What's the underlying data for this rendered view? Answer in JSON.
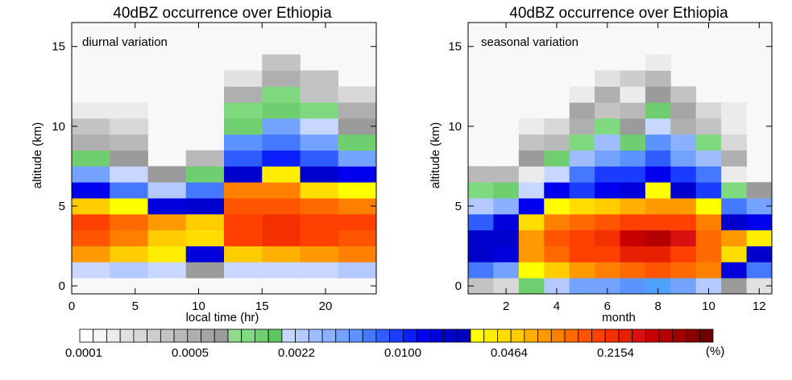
{
  "colorbar": {
    "colors": [
      "#ffffff",
      "#f5f5f5",
      "#ebebeb",
      "#e1e1e1",
      "#d7d7d7",
      "#cdcdcd",
      "#c3c3c3",
      "#b9b9b9",
      "#afafaf",
      "#a5a5a5",
      "#9b9b9b",
      "#91d98f",
      "#7fd97f",
      "#6fcf6f",
      "#5fc55f",
      "#c8d7ff",
      "#b3c9ff",
      "#9fbcff",
      "#8bb0ff",
      "#74a3ff",
      "#5b93ff",
      "#4479ff",
      "#2f5dff",
      "#1a3cff",
      "#0a1fff",
      "#0000ee",
      "#0000dd",
      "#0000cc",
      "#0000bb",
      "#ffff00",
      "#ffee00",
      "#ffdd00",
      "#ffcc00",
      "#ffb000",
      "#ff9900",
      "#ff8000",
      "#ff6a00",
      "#ff5500",
      "#ff4000",
      "#f53000",
      "#e62000",
      "#d81010",
      "#c80000",
      "#b40000",
      "#a00000",
      "#8b0000",
      "#6e0000"
    ],
    "tick_labels": [
      "0.0001",
      "0.0005",
      "0.0022",
      "0.0100",
      "0.0464",
      "0.2154"
    ],
    "unit": "(%)"
  },
  "chart_data": [
    {
      "type": "heatmap",
      "title": "40dBZ occurrence over Ethiopia",
      "annotation": "diurnal variation",
      "xlabel": "local time (hr)",
      "ylabel": "altitude (km)",
      "xlim": [
        0,
        24
      ],
      "ylim": [
        -0.5,
        16.5
      ],
      "xticks": [
        0,
        5,
        10,
        15,
        20
      ],
      "yticks": [
        0,
        5,
        10,
        15
      ],
      "x_bin_edges": [
        0,
        3,
        6,
        9,
        12,
        15,
        18,
        21,
        24
      ],
      "y_bin_edges": [
        0.5,
        1.5,
        2.5,
        3.5,
        4.5,
        5.5,
        6.5,
        7.5,
        8.5,
        9.5,
        10.5,
        11.5,
        12.5,
        13.5,
        14.5
      ],
      "cell_colors": [
        [
          "#ccd7ff",
          "#b3c9ff",
          "#c8d7ff",
          "#9b9b9b",
          "#c8d7ff",
          "#c8d7ff",
          "#c8d7ff",
          "#b3c9ff"
        ],
        [
          "#ff9900",
          "#ffcc00",
          "#ffee00",
          "#0000dd",
          "#ffcc00",
          "#ffb000",
          "#ff9900",
          "#ff8000"
        ],
        [
          "#ff5500",
          "#ff8000",
          "#ffcc00",
          "#ffdd00",
          "#ff4000",
          "#f53000",
          "#ff4000",
          "#ff5500"
        ],
        [
          "#ff4000",
          "#ff6a00",
          "#ff9900",
          "#ffcc00",
          "#ff4000",
          "#f53000",
          "#ff4000",
          "#ff4000"
        ],
        [
          "#ffcc00",
          "#ffff00",
          "#0000dd",
          "#0000cc",
          "#ff5500",
          "#ff5500",
          "#ff6a00",
          "#ff8000"
        ],
        [
          "#0000ee",
          "#4479ff",
          "#b3c9ff",
          "#4479ff",
          "#ff8000",
          "#ff8000",
          "#ffdd00",
          "#ffff00"
        ],
        [
          "#74a3ff",
          "#c8d7ff",
          "#9b9b9b",
          "#6fcf6f",
          "#0000cc",
          "#ffee00",
          "#0000cc",
          "#0000ee"
        ],
        [
          "#6fcf6f",
          "#9b9b9b",
          null,
          "#b9b9b9",
          "#2f5dff",
          "#0a1fff",
          "#2f5dff",
          "#74a3ff"
        ],
        [
          "#afafaf",
          "#b9b9b9",
          null,
          null,
          "#5b93ff",
          "#4479ff",
          "#74a3ff",
          "#6fcf6f"
        ],
        [
          "#c3c3c3",
          "#d7d7d7",
          null,
          null,
          "#6fcf6f",
          "#74a3ff",
          "#c8d7ff",
          "#9b9b9b"
        ],
        [
          "#ebebeb",
          "#ebebeb",
          null,
          null,
          "#7fd97f",
          "#6fcf6f",
          "#7fd97f",
          "#afafaf"
        ],
        [
          null,
          null,
          null,
          null,
          "#afafaf",
          "#7fd97f",
          "#c3c3c3",
          "#d7d7d7"
        ],
        [
          null,
          null,
          null,
          null,
          "#e1e1e1",
          "#afafaf",
          "#c3c3c3",
          null
        ],
        [
          null,
          null,
          null,
          null,
          null,
          "#c3c3c3",
          null,
          null
        ]
      ]
    },
    {
      "type": "heatmap",
      "title": "40dBZ occurrence over Ethiopia",
      "annotation": "seasonal variation",
      "xlabel": "month",
      "ylabel": "altitude (km)",
      "xlim": [
        0.5,
        12.5
      ],
      "ylim": [
        -0.5,
        16.5
      ],
      "xticks": [
        2,
        4,
        6,
        8,
        10,
        12
      ],
      "yticks": [
        0,
        5,
        10,
        15
      ],
      "x_bin_edges": [
        0.5,
        1.5,
        2.5,
        3.5,
        4.5,
        5.5,
        6.5,
        7.5,
        8.5,
        9.5,
        10.5,
        11.5,
        12.5
      ],
      "y_bin_edges": [
        -0.5,
        0.5,
        1.5,
        2.5,
        3.5,
        4.5,
        5.5,
        6.5,
        7.5,
        8.5,
        9.5,
        10.5,
        11.5,
        12.5,
        13.5,
        14.5,
        15.5
      ],
      "cell_colors": [
        [
          "#c3c3c3",
          "#d7d7d7",
          "#6fcf6f",
          "#b3c9ff",
          "#74a3ff",
          "#74a3ff",
          "#5b93ff",
          "#4fa3ff",
          "#74a3ff",
          "#b3c9ff",
          "#9b9b9b",
          "#e1e1e1"
        ],
        [
          "#4479ff",
          "#74a3ff",
          "#ffff00",
          "#ffcc00",
          "#ff9900",
          "#ff8000",
          "#ff6a00",
          "#ff5500",
          "#ff6a00",
          "#ff8000",
          "#0000dd",
          "#4479ff"
        ],
        [
          "#0000cc",
          "#0000dd",
          "#ff9900",
          "#ff6a00",
          "#ff4000",
          "#ff4000",
          "#e62000",
          "#e62000",
          "#ff4000",
          "#ff6a00",
          "#ffdd00",
          "#0000cc"
        ],
        [
          "#0000cc",
          "#0000cc",
          "#ff9900",
          "#ff5500",
          "#ff4000",
          "#f53000",
          "#c80000",
          "#b40000",
          "#d81010",
          "#ff6a00",
          "#ff9900",
          "#ffee00"
        ],
        [
          "#2f5dff",
          "#0000dd",
          "#ffdd00",
          "#ff8000",
          "#ff6a00",
          "#ff5500",
          "#ff4000",
          "#ff4000",
          "#ff4000",
          "#ff8000",
          "#0000cc",
          "#0000ee"
        ],
        [
          "#b3c9ff",
          "#8bb0ff",
          "#0000ee",
          "#ffff00",
          "#ffdd00",
          "#ffcc00",
          "#ffb000",
          "#ff9900",
          "#ff9900",
          "#ffff00",
          "#4479ff",
          "#74a3ff"
        ],
        [
          "#7fd97f",
          "#6fcf6f",
          "#c8d7ff",
          "#0000ee",
          "#1a3cff",
          "#0000ee",
          "#0000dd",
          "#ffff00",
          "#0000cc",
          "#1a3cff",
          "#7fd97f",
          "#9b9b9b"
        ],
        [
          "#b9b9b9",
          "#b9b9b9",
          "#ebebeb",
          "#c8d7ff",
          "#4479ff",
          "#1a3cff",
          "#1a3cff",
          "#0000ee",
          "#1a3cff",
          "#4479ff",
          "#ebebeb",
          null
        ],
        [
          null,
          null,
          "#9b9b9b",
          "#6fcf6f",
          "#9fbcff",
          "#74a3ff",
          "#5b93ff",
          "#2f5dff",
          "#74a3ff",
          "#9fbcff",
          "#afafaf",
          null
        ],
        [
          null,
          null,
          "#c3c3c3",
          "#b9b9b9",
          "#7fd97f",
          "#9fbcff",
          "#6fcf6f",
          "#5b93ff",
          "#8bb0ff",
          "#7fd97f",
          "#d7d7d7",
          null
        ],
        [
          null,
          null,
          "#ebebeb",
          "#d7d7d7",
          "#afafaf",
          "#7fd97f",
          "#9b9b9b",
          "#c8d7ff",
          "#afafaf",
          "#c3c3c3",
          "#ebebeb",
          null
        ],
        [
          null,
          null,
          null,
          null,
          "#a5a5a5",
          "#c3c3c3",
          "#b9b9b9",
          "#6fcf6f",
          "#a5a5a5",
          "#d7d7d7",
          "#ebebeb",
          null
        ],
        [
          null,
          null,
          null,
          null,
          "#ebebeb",
          "#afafaf",
          "#ebebeb",
          "#9b9b9b",
          "#c3c3c3",
          null,
          null,
          null
        ],
        [
          null,
          null,
          null,
          null,
          null,
          "#e1e1e1",
          "#cdcdcd",
          "#b9b9b9",
          null,
          null,
          null,
          null
        ],
        [
          null,
          null,
          null,
          null,
          null,
          null,
          null,
          "#ebebeb",
          null,
          null,
          null,
          null
        ]
      ]
    }
  ]
}
